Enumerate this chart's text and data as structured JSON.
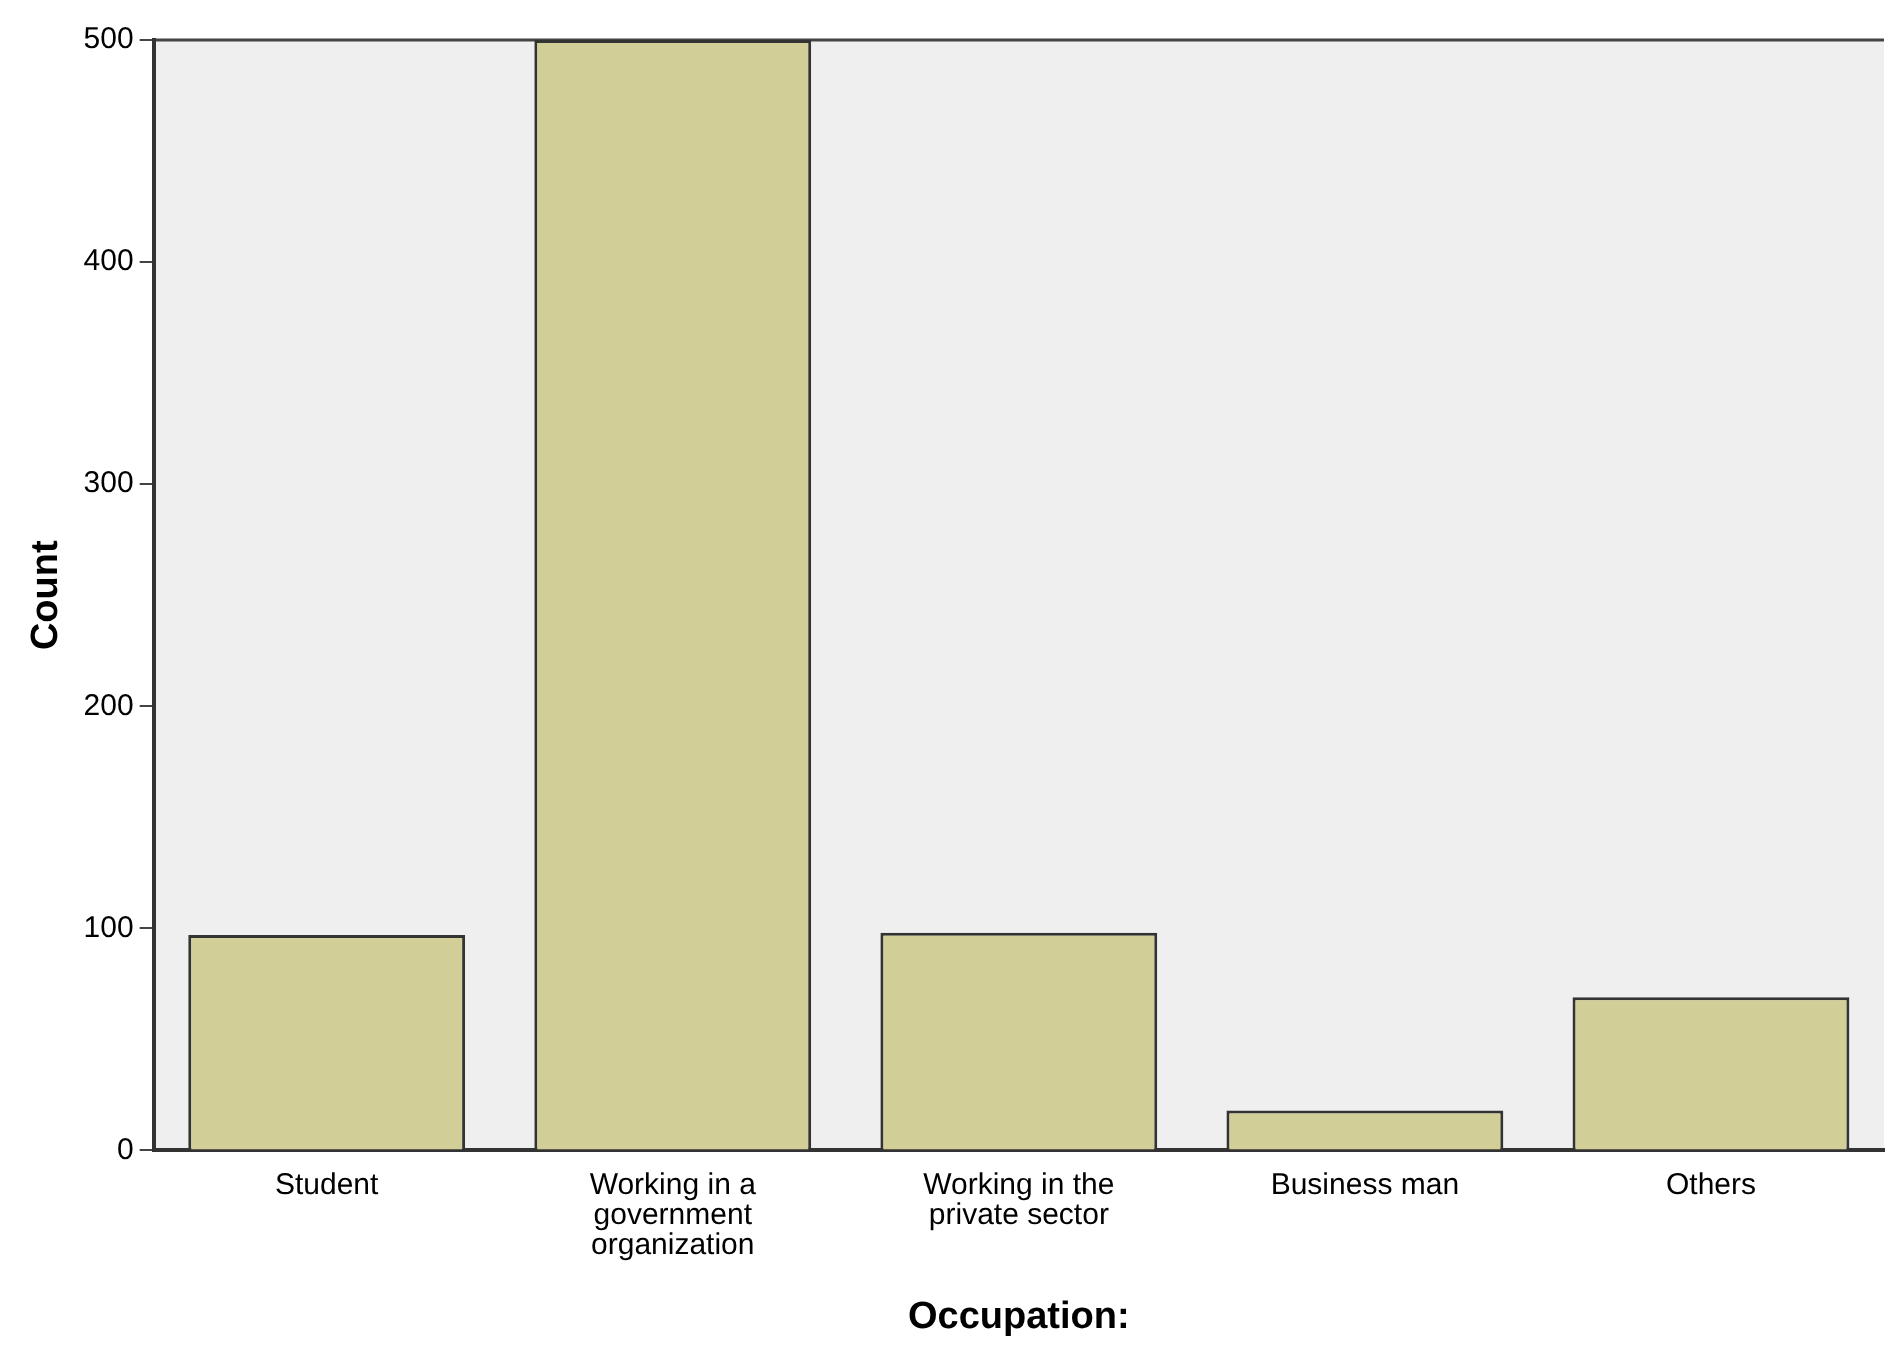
{
  "chart_data": {
    "type": "bar",
    "xlabel": "Occupation:",
    "ylabel": "Count",
    "categories": [
      "Student",
      "Working in a government organization",
      "Working in the private sector",
      "Business man",
      "Others"
    ],
    "values": [
      97,
      500,
      98,
      18,
      69
    ],
    "color": "#d2ce98",
    "ylim": [
      0,
      500
    ],
    "yticks": [
      0,
      100,
      200,
      300,
      400,
      500
    ],
    "grid": false,
    "legend": false
  }
}
